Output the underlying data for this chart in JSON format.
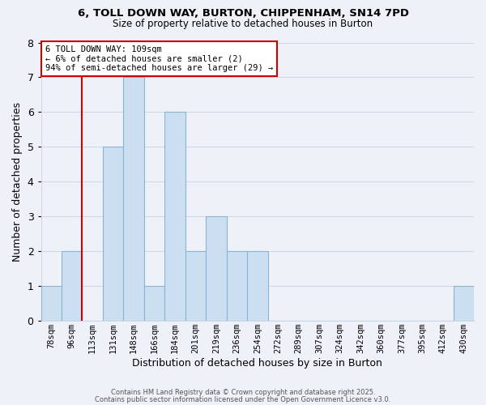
{
  "title1": "6, TOLL DOWN WAY, BURTON, CHIPPENHAM, SN14 7PD",
  "title2": "Size of property relative to detached houses in Burton",
  "xlabel": "Distribution of detached houses by size in Burton",
  "ylabel": "Number of detached properties",
  "bin_labels": [
    "78sqm",
    "96sqm",
    "113sqm",
    "131sqm",
    "148sqm",
    "166sqm",
    "184sqm",
    "201sqm",
    "219sqm",
    "236sqm",
    "254sqm",
    "272sqm",
    "289sqm",
    "307sqm",
    "324sqm",
    "342sqm",
    "360sqm",
    "377sqm",
    "395sqm",
    "412sqm",
    "430sqm"
  ],
  "bar_values": [
    1,
    2,
    0,
    5,
    7,
    1,
    6,
    2,
    3,
    2,
    2,
    0,
    0,
    0,
    0,
    0,
    0,
    0,
    0,
    0,
    1
  ],
  "bar_color": "#ccdff0",
  "bar_edgecolor": "#8ab4d4",
  "background_color": "#eef2f8",
  "grid_color": "#d0d8e8",
  "vline_color": "#cc0000",
  "vline_bin_index": 2,
  "annotation_title": "6 TOLL DOWN WAY: 109sqm",
  "annotation_line2": "← 6% of detached houses are smaller (2)",
  "annotation_line3": "94% of semi-detached houses are larger (29) →",
  "annotation_box_edgecolor": "#cc0000",
  "ylim": [
    0,
    8
  ],
  "yticks": [
    0,
    1,
    2,
    3,
    4,
    5,
    6,
    7,
    8
  ],
  "footer1": "Contains HM Land Registry data © Crown copyright and database right 2025.",
  "footer2": "Contains public sector information licensed under the Open Government Licence v3.0."
}
